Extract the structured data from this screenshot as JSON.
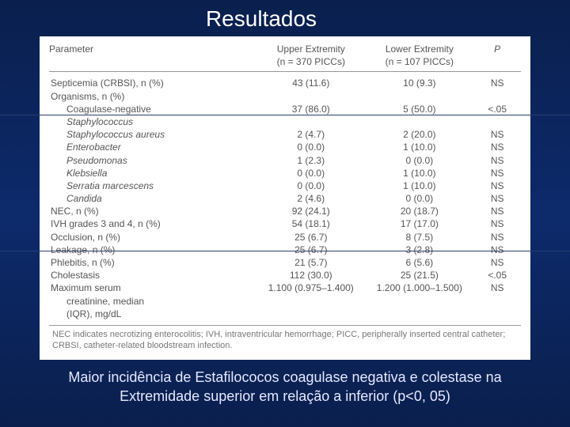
{
  "slide": {
    "title": "Resultados",
    "caption_line1": "Maior incidência de Estafilococos coagulase negativa e colestase na",
    "caption_line2": "Extremidade superior em relação a inferior (p<0, 05)"
  },
  "table": {
    "columns": {
      "parameter": "Parameter",
      "upper": "Upper Extremity",
      "upper_sub": "(n = 370 PICCs)",
      "lower": "Lower Extremity",
      "lower_sub": "(n = 107 PICCs)",
      "p": "P"
    },
    "rows": [
      {
        "label": "Septicemia (CRBSI), n (%)",
        "upper": "43 (11.6)",
        "lower": "10 (9.3)",
        "p": "NS",
        "indent": false,
        "italic": false
      },
      {
        "label": "Organisms, n (%)",
        "upper": "",
        "lower": "",
        "p": "",
        "indent": false,
        "italic": false
      },
      {
        "label": "Coagulase-negative",
        "upper": "37 (86.0)",
        "lower": "5 (50.0)",
        "p": "<.05",
        "indent": true,
        "italic": false
      },
      {
        "label": "Staphylococcus",
        "upper": "",
        "lower": "",
        "p": "",
        "indent": true,
        "italic": true,
        "extra_indent": true
      },
      {
        "label": "Staphylococcus aureus",
        "upper": "2 (4.7)",
        "lower": "2 (20.0)",
        "p": "NS",
        "indent": true,
        "italic": true
      },
      {
        "label": "Enterobacter",
        "upper": "0 (0.0)",
        "lower": "1 (10.0)",
        "p": "NS",
        "indent": true,
        "italic": true
      },
      {
        "label": "Pseudomonas",
        "upper": "1 (2.3)",
        "lower": "0 (0.0)",
        "p": "NS",
        "indent": true,
        "italic": true
      },
      {
        "label": "Klebsiella",
        "upper": "0 (0.0)",
        "lower": "1 (10.0)",
        "p": "NS",
        "indent": true,
        "italic": true
      },
      {
        "label": "Serratia marcescens",
        "upper": "0 (0.0)",
        "lower": "1 (10.0)",
        "p": "NS",
        "indent": true,
        "italic": true
      },
      {
        "label": "Candida",
        "upper": "2 (4.6)",
        "lower": "0 (0.0)",
        "p": "NS",
        "indent": true,
        "italic": true
      },
      {
        "label": "NEC, n (%)",
        "upper": "92 (24.1)",
        "lower": "20 (18.7)",
        "p": "NS",
        "indent": false,
        "italic": false
      },
      {
        "label": "IVH grades 3 and 4, n (%)",
        "upper": "54 (18.1)",
        "lower": "17 (17.0)",
        "p": "NS",
        "indent": false,
        "italic": false
      },
      {
        "label": "Occlusion, n (%)",
        "upper": "25 (6.7)",
        "lower": "8 (7.5)",
        "p": "NS",
        "indent": false,
        "italic": false
      },
      {
        "label": "Leakage, n (%)",
        "upper": "25 (6.7)",
        "lower": "3 (2.8)",
        "p": "NS",
        "indent": false,
        "italic": false
      },
      {
        "label": "Phlebitis, n (%)",
        "upper": "21 (5.7)",
        "lower": "6 (5.6)",
        "p": "NS",
        "indent": false,
        "italic": false
      },
      {
        "label": "Cholestasis",
        "upper": "112 (30.0)",
        "lower": "25 (21.5)",
        "p": "<.05",
        "indent": false,
        "italic": false
      },
      {
        "label": "Maximum serum",
        "upper": "1.100 (0.975–1.400)",
        "lower": "1.200 (1.000–1.500)",
        "p": "NS",
        "indent": false,
        "italic": false
      },
      {
        "label": "creatinine, median",
        "upper": "",
        "lower": "",
        "p": "",
        "indent": true,
        "italic": false
      },
      {
        "label": "(IQR), mg/dL",
        "upper": "",
        "lower": "",
        "p": "",
        "indent": true,
        "italic": false
      }
    ],
    "footnote": "NEC indicates necrotizing enterocolitis; IVH, intraventricular hemorrhage; PICC, peripherally inserted central catheter; CRBSI, catheter-related bloodstream infection."
  },
  "styling": {
    "bg_gradient_top": "#0a1f4d",
    "bg_gradient_mid": "#0d2a6b",
    "title_color": "#ffffff",
    "caption_color": "#e6e9ff",
    "table_bg": "#ffffff",
    "table_text": "#555555"
  }
}
